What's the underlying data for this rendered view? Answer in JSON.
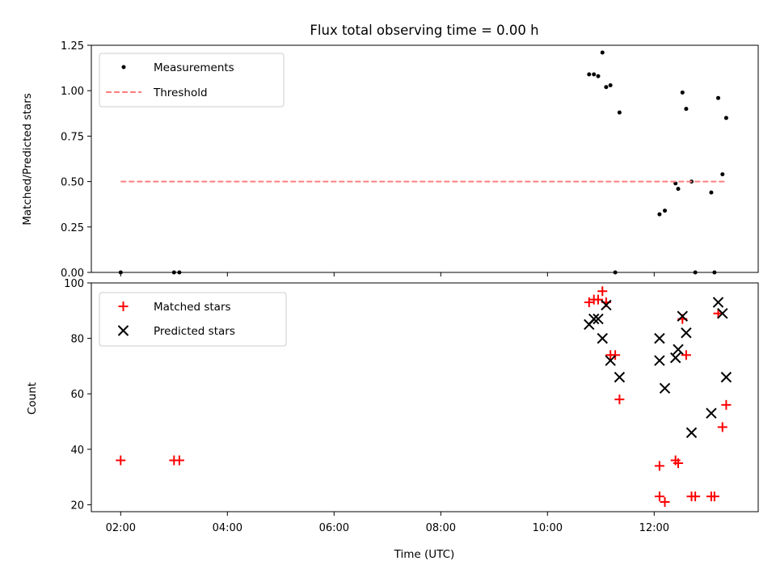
{
  "chart_data": [
    {
      "type": "scatter",
      "title": "Flux total observing time = 0.00 h",
      "xlabel": "",
      "ylabel": "Matched/Predicted stars",
      "xlim": [
        1.45,
        13.95
      ],
      "ylim": [
        0,
        1.25
      ],
      "x_tick_values": [
        2,
        4,
        6,
        8,
        10,
        12
      ],
      "y_tick_values": [
        0,
        0.25,
        0.5,
        0.75,
        1.0,
        1.25
      ],
      "y_tick_labels": [
        "0.00",
        "0.25",
        "0.50",
        "0.75",
        "1.00",
        "1.25"
      ],
      "legend_position": "upper-left",
      "series": [
        {
          "name": "Measurements",
          "kind": "scatter-dot",
          "color": "#000000",
          "x": [
            2.0,
            3.0,
            3.1,
            10.78,
            10.87,
            10.95,
            11.03,
            11.1,
            11.18,
            11.27,
            11.35,
            12.1,
            12.2,
            12.4,
            12.45,
            12.53,
            12.6,
            12.7,
            12.77,
            13.07,
            13.13,
            13.2,
            13.28,
            13.35
          ],
          "y": [
            0.0,
            0.0,
            0.0,
            1.09,
            1.09,
            1.08,
            1.21,
            1.02,
            1.03,
            0.0,
            0.88,
            0.32,
            0.34,
            0.49,
            0.46,
            0.99,
            0.9,
            0.5,
            0.0,
            0.44,
            0.0,
            0.96,
            0.54,
            0.85
          ]
        },
        {
          "name": "Threshold",
          "kind": "dashed-line",
          "color": "#ff8080",
          "x": [
            2.0,
            13.35
          ],
          "y": [
            0.5,
            0.5
          ]
        }
      ]
    },
    {
      "type": "scatter",
      "title": "",
      "xlabel": "Time (UTC)",
      "ylabel": "Count",
      "xlim": [
        1.45,
        13.95
      ],
      "ylim": [
        17.5,
        100
      ],
      "x_tick_values": [
        2,
        4,
        6,
        8,
        10,
        12
      ],
      "x_tick_labels": [
        "02:00",
        "04:00",
        "06:00",
        "08:00",
        "10:00",
        "12:00"
      ],
      "y_tick_values": [
        20,
        40,
        60,
        80,
        100
      ],
      "y_tick_labels": [
        "20",
        "40",
        "60",
        "80",
        "100"
      ],
      "legend_position": "upper-left",
      "series": [
        {
          "name": "Matched stars",
          "kind": "plus",
          "color": "#ff0000",
          "x": [
            2.0,
            3.0,
            3.1,
            10.78,
            10.87,
            10.95,
            11.03,
            11.1,
            11.18,
            11.27,
            11.35,
            12.1,
            12.1,
            12.2,
            12.4,
            12.45,
            12.53,
            12.6,
            12.7,
            12.77,
            13.07,
            13.13,
            13.2,
            13.28,
            13.35
          ],
          "y": [
            36,
            36,
            36,
            93,
            94,
            94,
            97,
            93,
            74,
            74,
            58,
            34,
            23,
            21,
            36,
            35,
            87,
            74,
            23,
            23,
            23,
            23,
            89,
            48,
            56
          ]
        },
        {
          "name": "Predicted stars",
          "kind": "cross",
          "color": "#000000",
          "x": [
            10.78,
            10.87,
            10.95,
            11.03,
            11.1,
            11.18,
            11.35,
            12.1,
            12.1,
            12.2,
            12.4,
            12.45,
            12.53,
            12.6,
            12.7,
            13.07,
            13.2,
            13.28,
            13.35
          ],
          "y": [
            85,
            87,
            87,
            80,
            92,
            72,
            66,
            80,
            72,
            62,
            73,
            76,
            88,
            82,
            46,
            53,
            93,
            89,
            66
          ]
        }
      ]
    }
  ]
}
